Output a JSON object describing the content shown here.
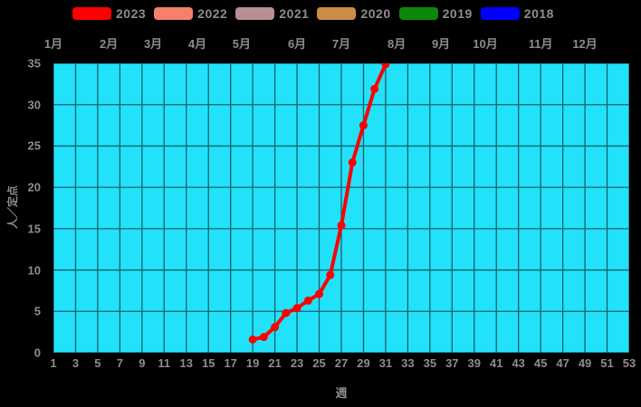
{
  "page": {
    "background": "#000000"
  },
  "legend": {
    "items": [
      {
        "label": "2023",
        "color": "#ff0000"
      },
      {
        "label": "2022",
        "color": "#f5806b"
      },
      {
        "label": "2021",
        "color": "#b78f93"
      },
      {
        "label": "2020",
        "color": "#cb8c48"
      },
      {
        "label": "2019",
        "color": "#0b880b"
      },
      {
        "label": "2018",
        "color": "#0000ff"
      }
    ]
  },
  "chart_data": {
    "type": "line",
    "title": "",
    "xlabel": "週",
    "ylabel": "人／定点",
    "xlim": [
      1,
      53
    ],
    "ylim": [
      0,
      35
    ],
    "grid": true,
    "legend_position": "top",
    "plot_bg": "#22e2fa",
    "grid_color": "#14616f",
    "text_color": "#8d8d8d",
    "x_ticks": [
      1,
      3,
      5,
      7,
      9,
      11,
      13,
      15,
      17,
      19,
      21,
      23,
      25,
      27,
      29,
      31,
      33,
      35,
      37,
      39,
      41,
      43,
      45,
      47,
      49,
      51,
      53
    ],
    "y_ticks": [
      0,
      5,
      10,
      15,
      20,
      25,
      30,
      35
    ],
    "month_labels": [
      {
        "label": "1月",
        "week": 1
      },
      {
        "label": "2月",
        "week": 6
      },
      {
        "label": "3月",
        "week": 10
      },
      {
        "label": "4月",
        "week": 14
      },
      {
        "label": "5月",
        "week": 18
      },
      {
        "label": "6月",
        "week": 23
      },
      {
        "label": "7月",
        "week": 27
      },
      {
        "label": "8月",
        "week": 32
      },
      {
        "label": "9月",
        "week": 36
      },
      {
        "label": "10月",
        "week": 40
      },
      {
        "label": "11月",
        "week": 45
      },
      {
        "label": "12月",
        "week": 49
      }
    ],
    "series": [
      {
        "name": "2023",
        "color": "#ff0000",
        "weeks": [
          19,
          20,
          21,
          22,
          23,
          24,
          25,
          26,
          27,
          28,
          29,
          30,
          31
        ],
        "values": [
          1.6,
          1.9,
          3.1,
          4.8,
          5.4,
          6.3,
          7.1,
          9.4,
          15.4,
          23.0,
          27.5,
          31.9,
          34.9
        ]
      },
      {
        "name": "2022",
        "color": "#f5806b",
        "weeks": [],
        "values": []
      },
      {
        "name": "2021",
        "color": "#b78f93",
        "weeks": [],
        "values": []
      },
      {
        "name": "2020",
        "color": "#cb8c48",
        "weeks": [],
        "values": []
      },
      {
        "name": "2019",
        "color": "#0b880b",
        "weeks": [],
        "values": []
      },
      {
        "name": "2018",
        "color": "#0000ff",
        "weeks": [],
        "values": []
      }
    ]
  }
}
